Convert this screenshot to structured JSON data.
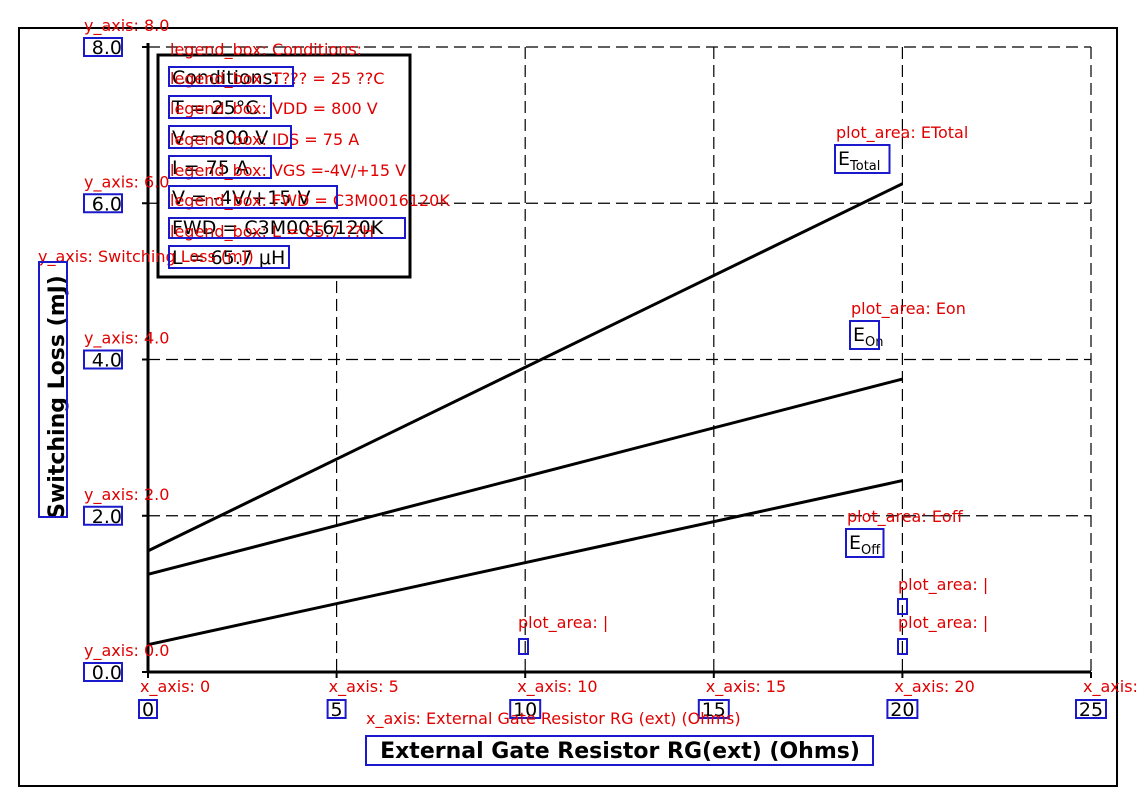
{
  "colors": {
    "annotation": "#e00000",
    "bbox": "#1a1acc",
    "ink": "#000000",
    "grid": "#000000"
  },
  "chart_data": {
    "type": "line",
    "xlabel": "External Gate Resistor RG(ext) (Ohms)",
    "ylabel": "Switching Loss (mJ)",
    "xlim": [
      0,
      25
    ],
    "ylim": [
      0,
      8
    ],
    "x_ticks": [
      "0",
      "5",
      "10",
      "15",
      "20",
      "25"
    ],
    "y_ticks": [
      "0.0",
      "2.0",
      "4.0",
      "6.0",
      "8.0"
    ],
    "x_tick_values": [
      0,
      5,
      10,
      15,
      20,
      25
    ],
    "y_tick_values": [
      0,
      2,
      4,
      6,
      8
    ],
    "grid": true,
    "series": [
      {
        "name": "ETotal",
        "label_main": "E",
        "label_sub": "Total",
        "x": [
          0,
          20
        ],
        "y": [
          1.55,
          6.25
        ]
      },
      {
        "name": "Eon",
        "label_main": "E",
        "label_sub": "On",
        "x": [
          0,
          20
        ],
        "y": [
          1.25,
          3.75
        ]
      },
      {
        "name": "Eoff",
        "label_main": "E",
        "label_sub": "Off",
        "x": [
          0,
          20
        ],
        "y": [
          0.35,
          2.45
        ]
      }
    ],
    "legend": {
      "position": "top-left",
      "lines": [
        "Conditions:",
        "T = 25°C",
        "V = 800 V",
        "I = 75 A",
        "V = -4V/+15 V",
        "FWD = C3M0016120K",
        "L = 65.7 μH"
      ]
    }
  },
  "annotations": {
    "y_axis": [
      "y_axis: 8.0",
      "y_axis: 6.0",
      "y_axis: 4.0",
      "y_axis: 2.0",
      "y_axis: 0.0"
    ],
    "y_title": "y_axis: Switching Loss (mJ)",
    "x_axis": [
      "x_axis: 0",
      "x_axis: 5",
      "x_axis: 10",
      "x_axis: 15",
      "x_axis: 20",
      "x_axis:"
    ],
    "x_title": "x_axis: External Gate Resistor RG (ext) (Ohms)",
    "legend": [
      "legend_box: Conditions:",
      "legend_box: T??? = 25 ??C",
      "legend_box: VDD = 800 V",
      "legend_box: IDS = 75 A",
      "legend_box: VGS =-4V/+15 V",
      "legend_box: FWD = C3M0016120K",
      "legend_box: L = 65.7 ??H"
    ],
    "plot_area": [
      "plot_area: ETotal",
      "plot_area: Eon",
      "plot_area: Eoff",
      "plot_area: |",
      "plot_area: |",
      "plot_area: |"
    ]
  }
}
